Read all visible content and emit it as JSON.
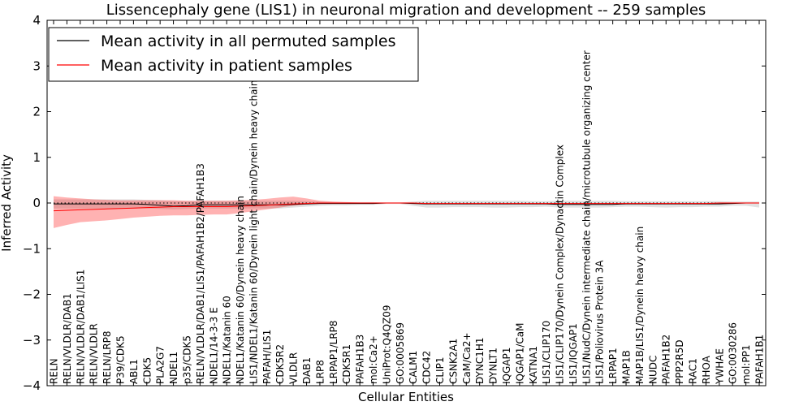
{
  "chart_data": {
    "type": "line",
    "title": "Lissencephaly gene (LIS1) in neuronal migration and development -- 259 samples",
    "xlabel": "Cellular Entities",
    "ylabel": "Inferred Activity",
    "ylim": [
      -4,
      4
    ],
    "yticks": [
      -4,
      -3,
      -2,
      -1,
      0,
      1,
      2,
      3,
      4
    ],
    "ytick_labels": [
      "−4",
      "−3",
      "−2",
      "−1",
      "0",
      "1",
      "2",
      "3",
      "4"
    ],
    "legend_position": "top-left",
    "categories": [
      "RELN",
      "RELN/VLDLR/DAB1",
      "RELN/VLDLR/DAB1/LIS1",
      "RELN/VLDLR",
      "RELN/LRP8",
      "P39/CDK5",
      "ABL1",
      "CDK5",
      "PLA2G7",
      "NDEL1",
      "p35/CDK5",
      "RELN/VLDLR/DAB1/LIS1/PAFAH1B2/PAFAH1B3",
      "NDEL1/14-3-3 E",
      "NDEL1/Katanin 60",
      "NDEL1/Katanin 60/Dynein heavy chain",
      "LIS1/NDEL1/Katanin 60/Dynein light chain/Dynein heavy chain",
      "PAFAH/LIS1",
      "CDK5R2",
      "VLDLR",
      "DAB1",
      "LRP8",
      "LRPAP1/LRP8",
      "CDK5R1",
      "PAFAH1B3",
      "mol:Ca2+",
      "UniProt:Q4QZ09",
      "GO:0005869",
      "CALM1",
      "CDC42",
      "CLIP1",
      "CSNK2A1",
      "CaM/Ca2+",
      "DYNC1H1",
      "DYNLT1",
      "IQGAP1",
      "IQGAP1/CaM",
      "KATNA1",
      "LIS1/CLIP170",
      "LIS1/CLIP170/Dynein Complex/Dynactin Complex",
      "LIS1/IQGAP1",
      "LIS1/NudC/Dynein intermediate chain/microtubule organizing center",
      "LIS1/Poliovirus Protein 3A",
      "LRPAP1",
      "MAP1B",
      "MAP1B/LIS1/Dynein heavy chain",
      "NUDC",
      "PAFAH1B2",
      "PPP2R5D",
      "RAC1",
      "RHOA",
      "YWHAE",
      "GO:0030286",
      "mol:PP1",
      "PAFAH1B1"
    ],
    "series": [
      {
        "name": "Mean activity in all permuted samples",
        "color": "#000000",
        "values": [
          -0.02,
          -0.02,
          -0.02,
          -0.02,
          -0.02,
          -0.02,
          -0.02,
          -0.03,
          -0.05,
          -0.07,
          -0.06,
          -0.04,
          -0.04,
          -0.04,
          -0.04,
          -0.04,
          -0.04,
          -0.04,
          -0.03,
          -0.02,
          -0.01,
          -0.01,
          -0.01,
          -0.01,
          -0.01,
          0.0,
          0.0,
          -0.01,
          -0.02,
          -0.02,
          -0.02,
          -0.02,
          -0.02,
          -0.02,
          -0.02,
          -0.02,
          -0.02,
          -0.02,
          -0.03,
          -0.03,
          -0.03,
          -0.03,
          -0.03,
          -0.02,
          -0.02,
          -0.02,
          -0.02,
          -0.02,
          -0.02,
          -0.02,
          -0.02,
          -0.01,
          0.0,
          0.0
        ],
        "band_lower": [
          -0.12,
          -0.12,
          -0.12,
          -0.12,
          -0.12,
          -0.12,
          -0.12,
          -0.12,
          -0.13,
          -0.14,
          -0.13,
          -0.12,
          -0.12,
          -0.12,
          -0.12,
          -0.12,
          -0.12,
          -0.12,
          -0.1,
          -0.08,
          -0.06,
          -0.05,
          -0.05,
          -0.04,
          -0.04,
          -0.02,
          -0.02,
          -0.06,
          -0.1,
          -0.1,
          -0.09,
          -0.09,
          -0.09,
          -0.1,
          -0.1,
          -0.09,
          -0.09,
          -0.08,
          -0.1,
          -0.1,
          -0.1,
          -0.1,
          -0.09,
          -0.08,
          -0.08,
          -0.09,
          -0.1,
          -0.09,
          -0.09,
          -0.08,
          -0.08,
          -0.06,
          -0.06,
          -0.1
        ],
        "band_upper": [
          0.08,
          0.08,
          0.08,
          0.08,
          0.08,
          0.08,
          0.08,
          0.07,
          0.06,
          0.04,
          0.04,
          0.05,
          0.05,
          0.05,
          0.05,
          0.05,
          0.05,
          0.05,
          0.05,
          0.04,
          0.03,
          0.02,
          0.02,
          0.02,
          0.02,
          0.01,
          0.01,
          0.03,
          0.05,
          0.05,
          0.05,
          0.05,
          0.05,
          0.05,
          0.05,
          0.05,
          0.04,
          0.04,
          0.05,
          0.05,
          0.05,
          0.05,
          0.05,
          0.04,
          0.04,
          0.04,
          0.04,
          0.04,
          0.04,
          0.04,
          0.04,
          0.03,
          0.03,
          0.03
        ]
      },
      {
        "name": "Mean activity in patient samples",
        "color": "#ff0000",
        "values": [
          -0.17,
          -0.16,
          -0.15,
          -0.14,
          -0.13,
          -0.12,
          -0.11,
          -0.1,
          -0.09,
          -0.08,
          -0.08,
          -0.08,
          -0.08,
          -0.08,
          -0.07,
          -0.06,
          -0.05,
          -0.03,
          -0.02,
          -0.01,
          0.0,
          0.0,
          0.0,
          0.0,
          0.0,
          0.0,
          0.0,
          0.0,
          -0.01,
          -0.01,
          -0.01,
          -0.01,
          -0.01,
          -0.01,
          -0.01,
          -0.01,
          -0.01,
          -0.01,
          -0.01,
          -0.01,
          -0.01,
          -0.01,
          -0.01,
          -0.01,
          -0.01,
          -0.01,
          -0.01,
          -0.01,
          -0.01,
          -0.01,
          0.0,
          0.0,
          0.0,
          0.0
        ],
        "band_lower": [
          -0.55,
          -0.48,
          -0.42,
          -0.4,
          -0.38,
          -0.35,
          -0.32,
          -0.3,
          -0.28,
          -0.27,
          -0.27,
          -0.26,
          -0.25,
          -0.25,
          -0.22,
          -0.18,
          -0.14,
          -0.1,
          -0.06,
          -0.03,
          -0.02,
          -0.01,
          -0.01,
          -0.01,
          -0.01,
          -0.01,
          -0.01,
          -0.01,
          -0.02,
          -0.02,
          -0.02,
          -0.02,
          -0.02,
          -0.02,
          -0.02,
          -0.02,
          -0.02,
          -0.02,
          -0.02,
          -0.02,
          -0.02,
          -0.02,
          -0.02,
          -0.02,
          -0.02,
          -0.02,
          -0.02,
          -0.02,
          -0.02,
          -0.02,
          -0.01,
          -0.01,
          -0.01,
          -0.01
        ],
        "band_upper": [
          0.15,
          0.12,
          0.1,
          0.08,
          0.07,
          0.06,
          0.06,
          0.06,
          0.06,
          0.06,
          0.05,
          0.05,
          0.05,
          0.05,
          0.06,
          0.07,
          0.09,
          0.12,
          0.14,
          0.1,
          0.05,
          0.03,
          0.02,
          0.01,
          0.01,
          0.01,
          0.01,
          0.01,
          0.0,
          0.0,
          0.0,
          0.0,
          0.0,
          0.0,
          0.0,
          0.0,
          0.0,
          0.0,
          0.0,
          0.0,
          0.0,
          0.0,
          0.0,
          0.0,
          0.0,
          0.0,
          0.0,
          0.0,
          0.0,
          0.0,
          0.01,
          0.01,
          0.01,
          0.01
        ]
      }
    ],
    "reference_line": {
      "style": "dotted",
      "value": 0.0
    }
  }
}
